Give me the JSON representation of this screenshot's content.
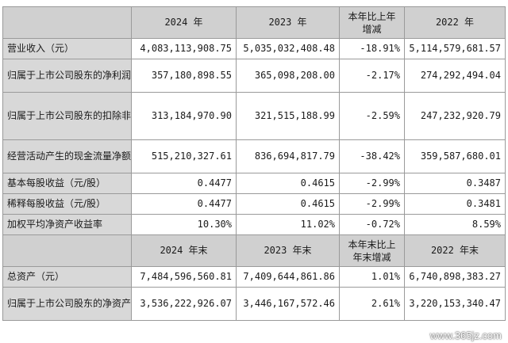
{
  "header1": {
    "c1": "2024 年",
    "c2": "2023 年",
    "c3": "本年比上年增减",
    "c4": "2022 年"
  },
  "header2": {
    "c1": "2024 年末",
    "c2": "2023 年末",
    "c3": "本年末比上年末增减",
    "c4": "2022 年末"
  },
  "rows1": [
    {
      "label": "营业收入（元）",
      "v1": "4,083,113,908.75",
      "v2": "5,035,032,408.48",
      "v3": "-18.91%",
      "v4": "5,114,579,681.57"
    },
    {
      "label": "归属于上市公司股东的净利润（元）",
      "v1": "357,180,898.55",
      "v2": "365,098,208.00",
      "v3": "-2.17%",
      "v4": "274,292,494.04"
    },
    {
      "label": "归属于上市公司股东的扣除非经常性损益的净利润（元）",
      "v1": "313,184,970.90",
      "v2": "321,515,188.99",
      "v3": "-2.59%",
      "v4": "247,232,920.79"
    },
    {
      "label": "经营活动产生的现金流量净额（元）",
      "v1": "515,210,327.61",
      "v2": "836,694,817.79",
      "v3": "-38.42%",
      "v4": "359,587,680.01"
    },
    {
      "label": "基本每股收益（元/股）",
      "v1": "0.4477",
      "v2": "0.4615",
      "v3": "-2.99%",
      "v4": "0.3487"
    },
    {
      "label": "稀释每股收益（元/股）",
      "v1": "0.4477",
      "v2": "0.4615",
      "v3": "-2.99%",
      "v4": "0.3481"
    },
    {
      "label": "加权平均净资产收益率",
      "v1": "10.30%",
      "v2": "11.02%",
      "v3": "-0.72%",
      "v4": "8.59%"
    }
  ],
  "rows2": [
    {
      "label": "总资产（元）",
      "v1": "7,484,596,560.81",
      "v2": "7,409,644,861.86",
      "v3": "1.01%",
      "v4": "6,740,898,383.27"
    },
    {
      "label": "归属于上市公司股东的净资产（元）",
      "v1": "3,536,222,926.07",
      "v2": "3,446,167,572.46",
      "v3": "2.61%",
      "v4": "3,220,153,340.47"
    }
  ],
  "watermark": "www.365jz.com"
}
